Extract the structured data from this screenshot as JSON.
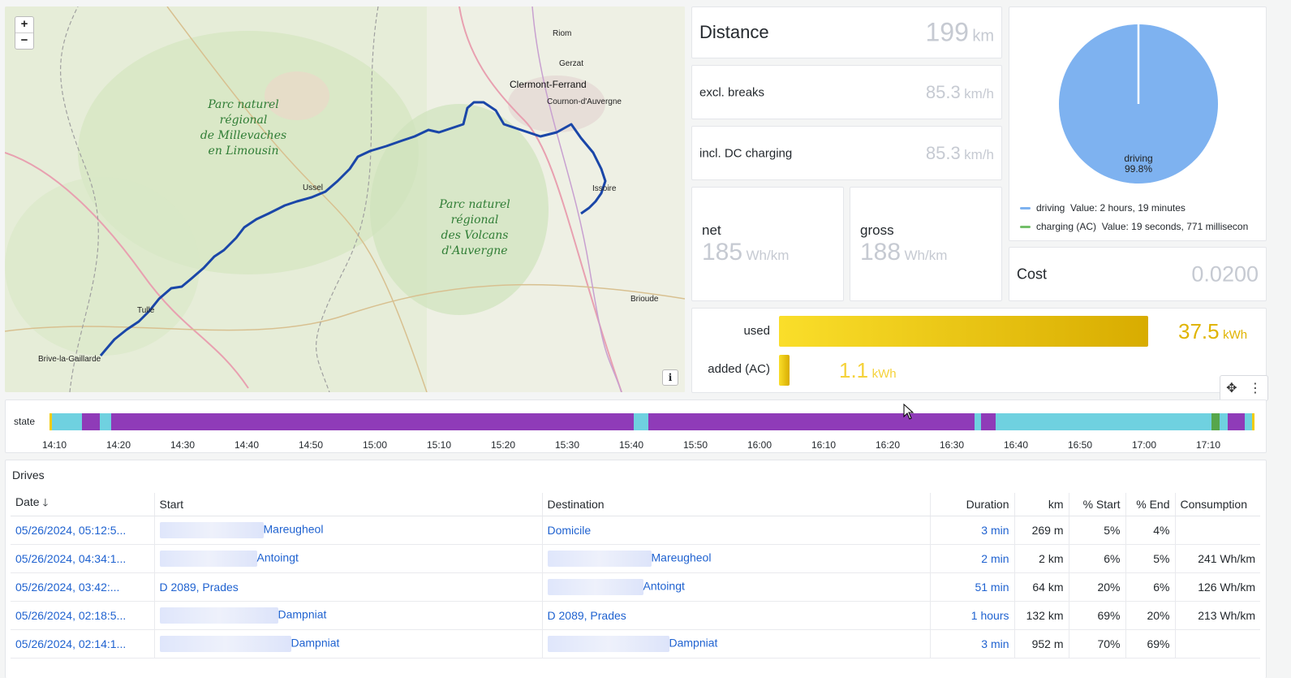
{
  "map": {
    "zoom_in": "+",
    "zoom_out": "−",
    "info": "i",
    "places": [
      {
        "name": "Riom"
      },
      {
        "name": "Gerzat"
      },
      {
        "name": "Clermont-Ferrand"
      },
      {
        "name": "Cournon-d'Auvergne"
      },
      {
        "name": "Ussel"
      },
      {
        "name": "Issoire"
      },
      {
        "name": "Brioude"
      },
      {
        "name": "Tulle"
      },
      {
        "name": "Brive-la-Gaillarde"
      }
    ],
    "parks": [
      {
        "lines": [
          "Parc naturel",
          "régional",
          "de Millevaches",
          "en Limousin"
        ]
      },
      {
        "lines": [
          "Parc naturel",
          "régional",
          "des Volcans",
          "d'Auvergne"
        ]
      }
    ],
    "route_color": "#1a46a8"
  },
  "distance": {
    "title": "Distance",
    "value": "199",
    "unit": "km"
  },
  "excl_breaks": {
    "title": "excl. breaks",
    "value": "85.3",
    "unit": "km/h"
  },
  "incl_dc": {
    "title": "incl. DC charging",
    "value": "85.3",
    "unit": "km/h"
  },
  "net": {
    "title": "net",
    "value": "185",
    "unit": "Wh/km"
  },
  "gross": {
    "title": "gross",
    "value": "188",
    "unit": "Wh/km"
  },
  "pie": {
    "slice_label": "driving",
    "slice_pct": "99.8%",
    "driving_fraction": 0.998,
    "colors": {
      "driving": "#7eb2f0",
      "charging": "#73bf69"
    },
    "legend": [
      {
        "name": "driving",
        "value": "Value: 2 hours, 19 minutes"
      },
      {
        "name": "charging (AC)",
        "value": "Value: 19 seconds, 771 millisecon"
      }
    ]
  },
  "cost": {
    "title": "Cost",
    "value": "0.0200"
  },
  "energy": {
    "used": {
      "label": "used",
      "value": "37.5",
      "unit": "kWh",
      "fraction": 1.0
    },
    "added": {
      "label": "added (AC)",
      "value": "1.1",
      "unit": "kWh",
      "fraction": 0.029
    }
  },
  "state": {
    "label": "state",
    "ticks": [
      "14:10",
      "14:20",
      "14:30",
      "14:40",
      "14:50",
      "15:00",
      "15:10",
      "15:20",
      "15:30",
      "15:40",
      "15:50",
      "16:00",
      "16:10",
      "16:20",
      "16:30",
      "16:40",
      "16:50",
      "17:00",
      "17:10"
    ],
    "colors": {
      "online": "#6fd1e0",
      "driving": "#8f3bb8",
      "charging": "#56a64b",
      "start": "#f2cc0c"
    }
  },
  "drives": {
    "title": "Drives",
    "columns": [
      "Date",
      "Start",
      "Destination",
      "Duration",
      "km",
      "% Start",
      "% End",
      "Consumption"
    ],
    "sort_icon": "arrow-down-icon",
    "rows": [
      {
        "date": "05/26/2024, 05:12:5...",
        "start": "Mareugheol",
        "dest": "Domicile",
        "duration": "3 min",
        "km": "269 m",
        "pstart": "5%",
        "pend": "4%",
        "cons": ""
      },
      {
        "date": "05/26/2024, 04:34:1...",
        "start": "Antoingt",
        "dest": "Mareugheol",
        "duration": "2 min",
        "km": "2 km",
        "pstart": "6%",
        "pend": "5%",
        "cons": "241 Wh/km"
      },
      {
        "date": "05/26/2024, 03:42:...",
        "start": "D 2089, Prades",
        "dest": "Antoingt",
        "duration": "51 min",
        "km": "64 km",
        "pstart": "20%",
        "pend": "6%",
        "cons": "126 Wh/km"
      },
      {
        "date": "05/26/2024, 02:18:5...",
        "start": "Dampniat",
        "dest": "D 2089, Prades",
        "duration": "1 hours",
        "km": "132 km",
        "pstart": "69%",
        "pend": "20%",
        "cons": "213 Wh/km"
      },
      {
        "date": "05/26/2024, 02:14:1...",
        "start": "Dampniat",
        "dest": "Dampniat",
        "duration": "3 min",
        "km": "952 m",
        "pstart": "70%",
        "pend": "69%",
        "cons": ""
      }
    ]
  }
}
